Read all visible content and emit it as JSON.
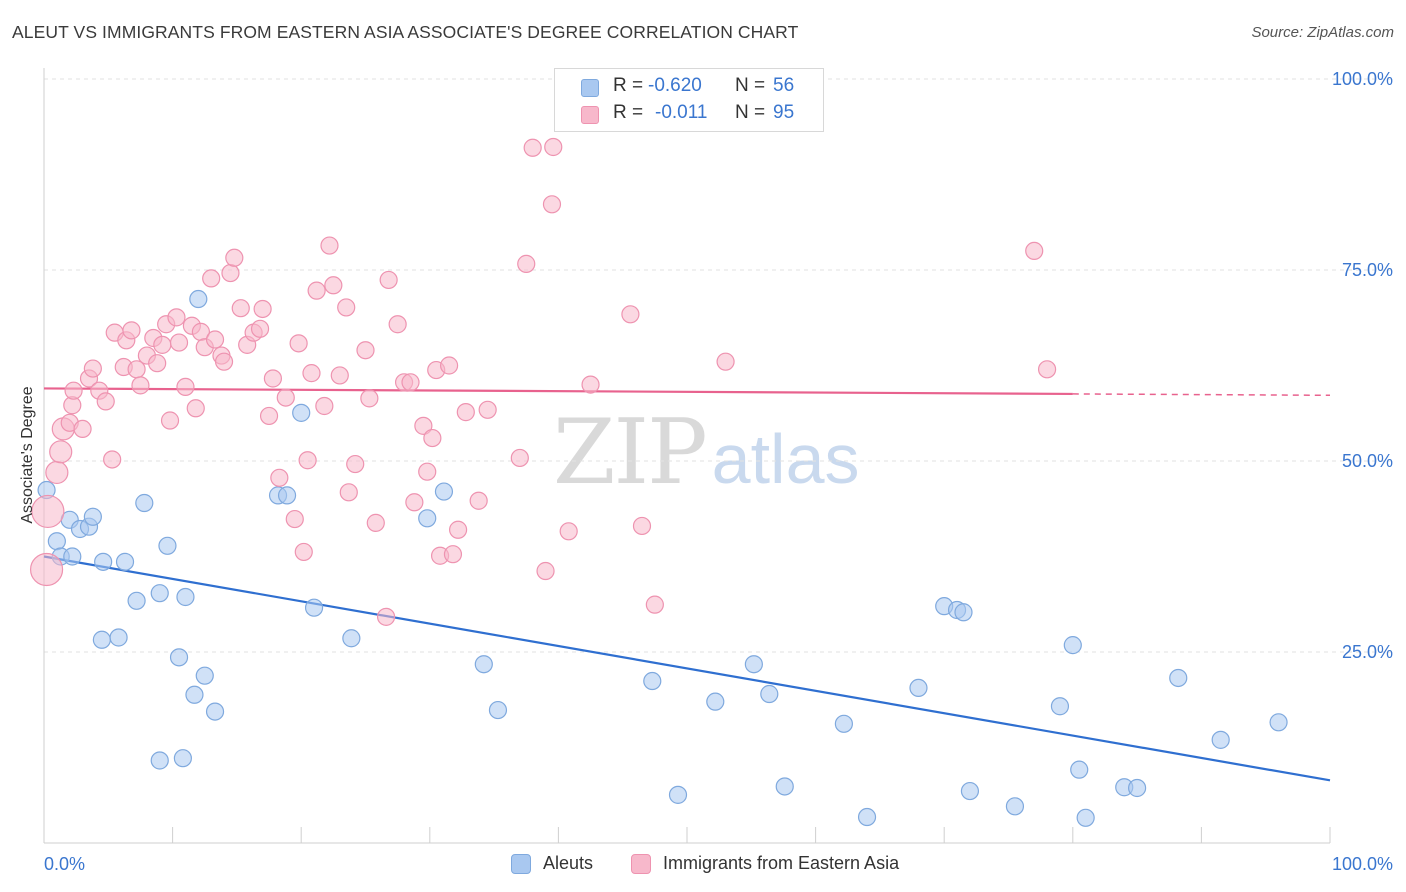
{
  "header": {
    "title": "ALEUT VS IMMIGRANTS FROM EASTERN ASIA ASSOCIATE'S DEGREE CORRELATION CHART",
    "source": "Source: ZipAtlas.com"
  },
  "watermark": {
    "zip": "ZIP",
    "atlas": "atlas"
  },
  "stats_legend": [
    {
      "r_label": "R =",
      "r_value": "-0.620",
      "n_label": "N =",
      "n_value": "56",
      "color": "#a9c8f0"
    },
    {
      "r_label": "R =",
      "r_value": "-0.011",
      "n_label": "N =",
      "n_value": "95",
      "color": "#f7b8cb"
    }
  ],
  "colors": {
    "blue_fill": "#a9c8f0",
    "blue_stroke": "#7fa9de",
    "blue_line": "#2f6fd0",
    "pink_fill": "#f7b8cb",
    "pink_stroke": "#ee93b0",
    "pink_line": "#e8628e",
    "tick_label": "#3a76cf",
    "grid": "#e2e2e2"
  },
  "chart_data": {
    "type": "scatter",
    "title": "ALEUT VS IMMIGRANTS FROM EASTERN ASIA ASSOCIATE'S DEGREE CORRELATION CHART",
    "xlabel": "",
    "ylabel": "Associate's Degree",
    "xlim": [
      0,
      100
    ],
    "ylim": [
      0,
      100
    ],
    "x_tick_labels": [
      "0.0%",
      "100.0%"
    ],
    "y_tick_labels": [
      "100.0%",
      "75.0%",
      "50.0%",
      "25.0%"
    ],
    "y_ticks": [
      100,
      75,
      50,
      25
    ],
    "grid": true,
    "legend_position": "bottom",
    "series": [
      {
        "name": "Aleuts",
        "color": "#a9c8f0",
        "trend": {
          "x": [
            0,
            100
          ],
          "y": [
            37.5,
            8.2
          ]
        },
        "points": [
          [
            0.2,
            46.2
          ],
          [
            1.0,
            39.5
          ],
          [
            1.3,
            37.5
          ],
          [
            2.0,
            42.3
          ],
          [
            2.2,
            37.5
          ],
          [
            2.8,
            41.1
          ],
          [
            3.5,
            41.4
          ],
          [
            3.8,
            42.7
          ],
          [
            4.5,
            26.6
          ],
          [
            4.6,
            36.8
          ],
          [
            5.8,
            26.9
          ],
          [
            6.3,
            36.8
          ],
          [
            7.2,
            31.7
          ],
          [
            7.8,
            44.5
          ],
          [
            9.0,
            10.8
          ],
          [
            9.0,
            32.7
          ],
          [
            9.6,
            38.9
          ],
          [
            10.5,
            24.3
          ],
          [
            10.8,
            11.1
          ],
          [
            11.0,
            32.2
          ],
          [
            11.7,
            19.4
          ],
          [
            12.0,
            71.2
          ],
          [
            12.5,
            21.9
          ],
          [
            13.3,
            17.2
          ],
          [
            18.2,
            45.5
          ],
          [
            18.9,
            45.5
          ],
          [
            20.0,
            56.3
          ],
          [
            21.0,
            30.8
          ],
          [
            23.9,
            26.8
          ],
          [
            29.8,
            42.5
          ],
          [
            31.1,
            46.0
          ],
          [
            34.2,
            23.4
          ],
          [
            35.3,
            17.4
          ],
          [
            47.3,
            21.2
          ],
          [
            49.3,
            6.3
          ],
          [
            52.2,
            18.5
          ],
          [
            55.2,
            23.4
          ],
          [
            56.4,
            19.5
          ],
          [
            57.6,
            7.4
          ],
          [
            62.2,
            15.6
          ],
          [
            64.0,
            3.4
          ],
          [
            68.0,
            20.3
          ],
          [
            70.0,
            31.0
          ],
          [
            71.0,
            30.5
          ],
          [
            71.5,
            30.2
          ],
          [
            72.0,
            6.8
          ],
          [
            75.5,
            4.8
          ],
          [
            79.0,
            17.9
          ],
          [
            80.0,
            25.9
          ],
          [
            80.5,
            9.6
          ],
          [
            81.0,
            3.3
          ],
          [
            84.0,
            7.3
          ],
          [
            85.0,
            7.2
          ],
          [
            88.2,
            21.6
          ],
          [
            91.5,
            13.5
          ],
          [
            96.0,
            15.8
          ]
        ]
      },
      {
        "name": "Immigrants from Eastern Asia",
        "color": "#f7b8cb",
        "trend": {
          "x": [
            0,
            100
          ],
          "y": [
            59.5,
            58.6
          ]
        },
        "points": [
          [
            0.2,
            35.8
          ],
          [
            0.3,
            43.4
          ],
          [
            1.0,
            48.5
          ],
          [
            1.3,
            51.2
          ],
          [
            1.5,
            54.2
          ],
          [
            2.0,
            55.0
          ],
          [
            2.2,
            57.3
          ],
          [
            2.3,
            59.2
          ],
          [
            3.0,
            54.2
          ],
          [
            3.5,
            60.8
          ],
          [
            3.8,
            62.1
          ],
          [
            4.3,
            59.2
          ],
          [
            4.8,
            57.8
          ],
          [
            5.3,
            50.2
          ],
          [
            5.5,
            66.8
          ],
          [
            6.2,
            62.3
          ],
          [
            6.4,
            65.8
          ],
          [
            6.8,
            67.1
          ],
          [
            7.2,
            62.0
          ],
          [
            7.5,
            59.9
          ],
          [
            8.0,
            63.8
          ],
          [
            8.5,
            66.1
          ],
          [
            8.8,
            62.8
          ],
          [
            9.2,
            65.2
          ],
          [
            9.5,
            67.9
          ],
          [
            9.8,
            55.3
          ],
          [
            10.3,
            68.8
          ],
          [
            10.5,
            65.5
          ],
          [
            11.0,
            59.7
          ],
          [
            11.5,
            67.7
          ],
          [
            11.8,
            56.9
          ],
          [
            12.2,
            66.9
          ],
          [
            12.5,
            64.9
          ],
          [
            13.0,
            73.9
          ],
          [
            13.3,
            65.9
          ],
          [
            13.8,
            63.8
          ],
          [
            14.0,
            63.0
          ],
          [
            14.5,
            74.6
          ],
          [
            14.8,
            76.6
          ],
          [
            15.3,
            70.0
          ],
          [
            15.8,
            65.2
          ],
          [
            16.3,
            66.8
          ],
          [
            16.8,
            67.3
          ],
          [
            17.0,
            69.9
          ],
          [
            17.5,
            55.9
          ],
          [
            17.8,
            60.8
          ],
          [
            18.3,
            47.8
          ],
          [
            18.8,
            58.3
          ],
          [
            19.5,
            42.4
          ],
          [
            19.8,
            65.4
          ],
          [
            20.2,
            38.1
          ],
          [
            20.5,
            50.1
          ],
          [
            20.8,
            61.5
          ],
          [
            21.2,
            72.3
          ],
          [
            21.8,
            57.2
          ],
          [
            22.2,
            78.2
          ],
          [
            22.5,
            73.0
          ],
          [
            23.0,
            61.2
          ],
          [
            23.5,
            70.1
          ],
          [
            23.7,
            45.9
          ],
          [
            24.2,
            49.6
          ],
          [
            25.0,
            64.5
          ],
          [
            25.3,
            58.2
          ],
          [
            25.8,
            41.9
          ],
          [
            26.6,
            29.6
          ],
          [
            26.8,
            73.7
          ],
          [
            27.5,
            67.9
          ],
          [
            28.0,
            60.3
          ],
          [
            28.5,
            60.3
          ],
          [
            28.8,
            44.6
          ],
          [
            29.5,
            54.6
          ],
          [
            29.8,
            48.6
          ],
          [
            30.2,
            53.0
          ],
          [
            30.5,
            61.9
          ],
          [
            30.8,
            37.6
          ],
          [
            31.5,
            62.5
          ],
          [
            31.8,
            37.8
          ],
          [
            32.2,
            41.0
          ],
          [
            32.8,
            56.4
          ],
          [
            33.8,
            44.8
          ],
          [
            34.5,
            56.7
          ],
          [
            37.0,
            50.4
          ],
          [
            37.5,
            75.8
          ],
          [
            38.0,
            91.0
          ],
          [
            39.0,
            35.6
          ],
          [
            39.5,
            83.6
          ],
          [
            39.6,
            91.1
          ],
          [
            40.8,
            40.8
          ],
          [
            42.5,
            60.0
          ],
          [
            45.6,
            69.2
          ],
          [
            46.5,
            41.5
          ],
          [
            47.5,
            31.2
          ],
          [
            53.0,
            63.0
          ],
          [
            77.0,
            77.5
          ],
          [
            78.0,
            62.0
          ]
        ]
      }
    ]
  },
  "legend_bottom": [
    {
      "label": "Aleuts",
      "color": "#a9c8f0"
    },
    {
      "label": "Immigrants from Eastern Asia",
      "color": "#f7b8cb"
    }
  ]
}
